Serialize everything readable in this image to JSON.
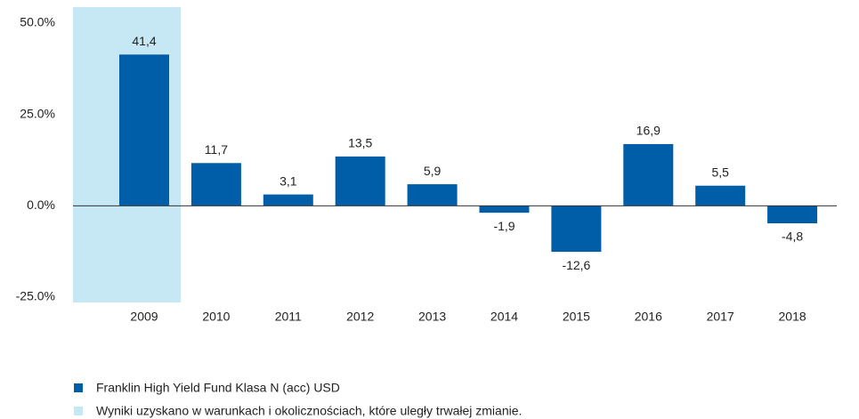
{
  "chart_data": {
    "type": "bar",
    "categories": [
      "2009",
      "2010",
      "2011",
      "2012",
      "2013",
      "2014",
      "2015",
      "2016",
      "2017",
      "2018"
    ],
    "series": [
      {
        "name": "Franklin High Yield Fund Klasa N (acc) USD",
        "color": "#005ea8",
        "values": [
          41.4,
          11.7,
          3.1,
          13.5,
          5.9,
          -1.9,
          -12.6,
          16.9,
          5.5,
          -4.8
        ],
        "value_labels": [
          "41,4",
          "11,7",
          "3,1",
          "13,5",
          "5,9",
          "-1,9",
          "-12,6",
          "16,9",
          "5,5",
          "-4,8"
        ]
      }
    ],
    "shaded": {
      "name": "Wyniki uzyskano w warunkach i okolicznościach, które uległy trwałej zmianie.",
      "color": "#c6e7f4",
      "indices": [
        0
      ]
    },
    "ylim": [
      -25,
      50
    ],
    "yticks": [
      {
        "value": -25,
        "label": "-25.0%"
      },
      {
        "value": 0,
        "label": "0.0%"
      },
      {
        "value": 25,
        "label": "25.0%"
      },
      {
        "value": 50,
        "label": "50.0%"
      }
    ],
    "grid": false
  }
}
